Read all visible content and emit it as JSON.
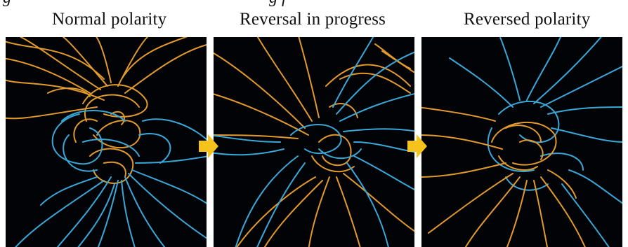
{
  "figure": {
    "cut_off_heading": {
      "left_fragment": "g",
      "right_fragment": "g   f"
    },
    "panels": [
      {
        "caption": "Normal polarity"
      },
      {
        "caption": "Reversal in progress"
      },
      {
        "caption": "Reversed polarity"
      }
    ],
    "colors": {
      "background": "#020307",
      "field_orange": "#e39a2c",
      "field_blue": "#39a8d8",
      "arrow_yellow": "#f6c21c"
    }
  }
}
